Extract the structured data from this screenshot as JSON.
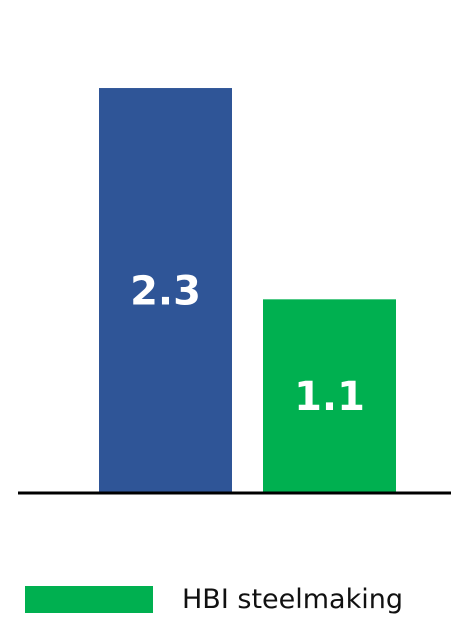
{
  "chart_data": {
    "type": "bar",
    "categories": [
      "",
      "HBI steelmaking"
    ],
    "values": [
      2.3,
      1.1
    ],
    "data_labels": [
      "2.3",
      "1.1"
    ],
    "colors": [
      "#2f5597",
      "#00b050"
    ],
    "ylim": [
      0,
      2.8
    ],
    "legend": {
      "entries": [
        {
          "label": "HBI steelmaking",
          "color": "#00b050"
        }
      ],
      "placement": "bottom"
    },
    "axis_color": "#000000",
    "grid": false
  }
}
